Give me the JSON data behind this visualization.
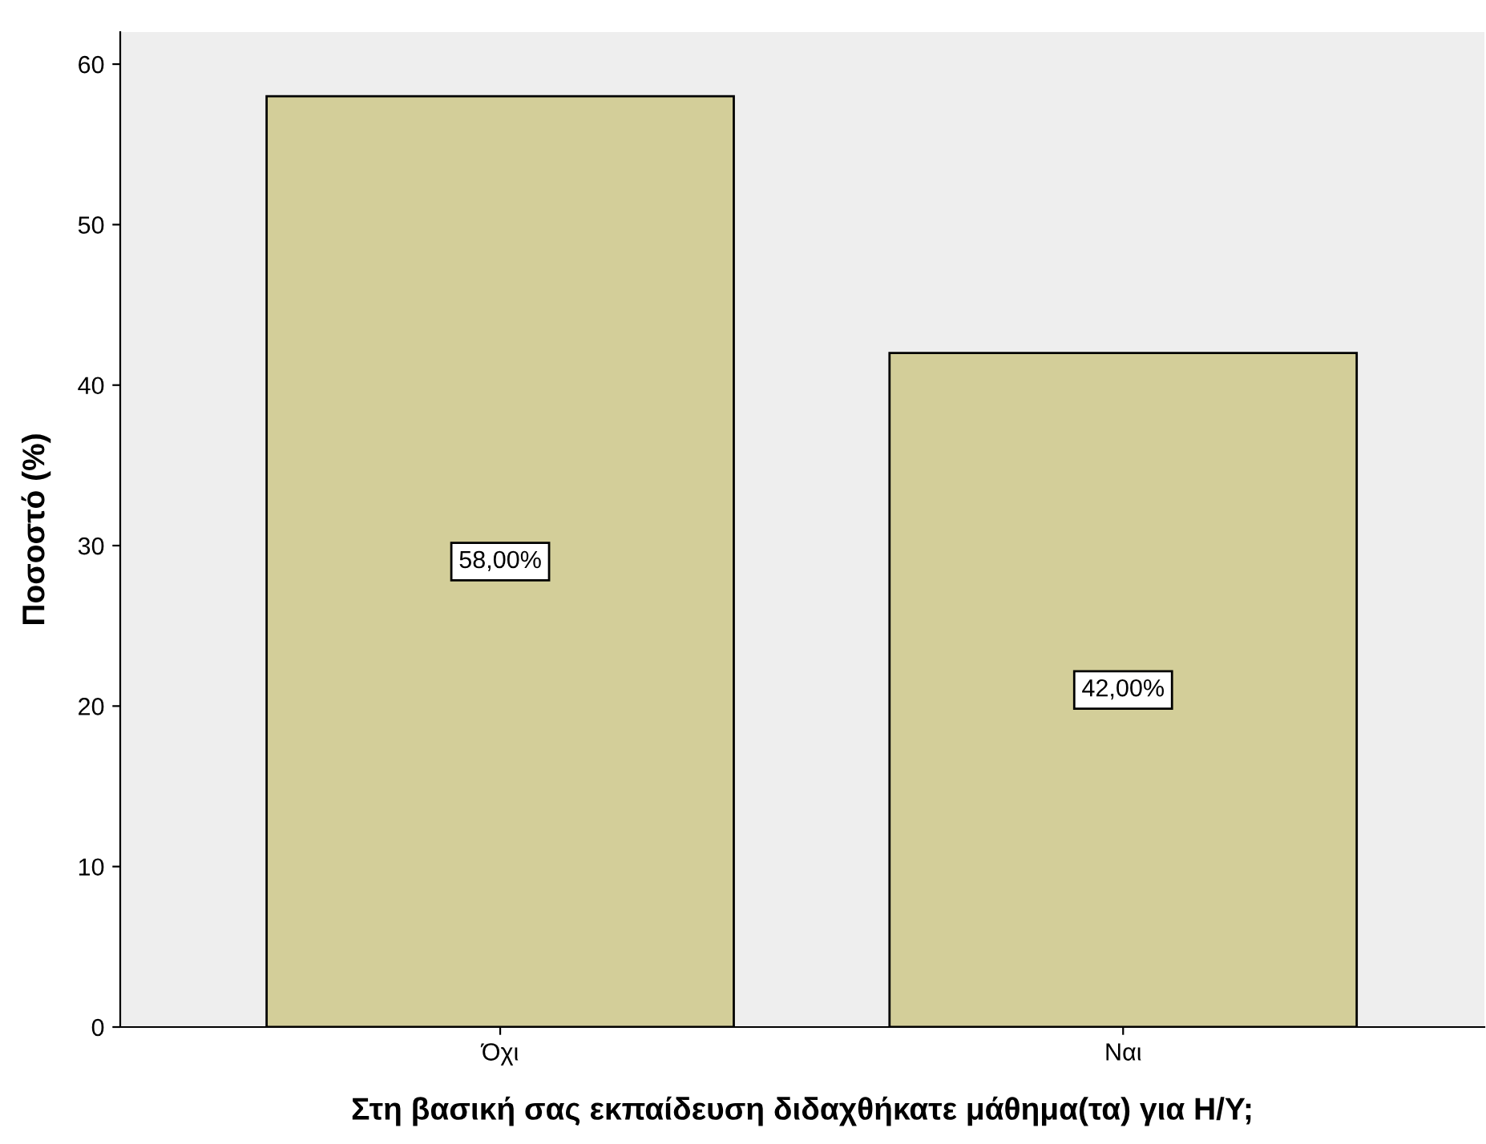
{
  "chart_data": {
    "type": "bar",
    "xlabel": "Στη βασική σας εκπαίδευση διδαχθήκατε μάθημα(τα) για Η/Υ;",
    "ylabel": "Ποσοστό (%)",
    "categories": [
      "Όχι",
      "Ναι"
    ],
    "values": [
      58,
      42
    ],
    "value_labels": [
      "58,00%",
      "42,00%"
    ],
    "color": "#d3ce99",
    "ylim": [
      0,
      62
    ],
    "yticks": [
      0,
      10,
      20,
      30,
      40,
      50,
      60
    ],
    "grid": false
  }
}
